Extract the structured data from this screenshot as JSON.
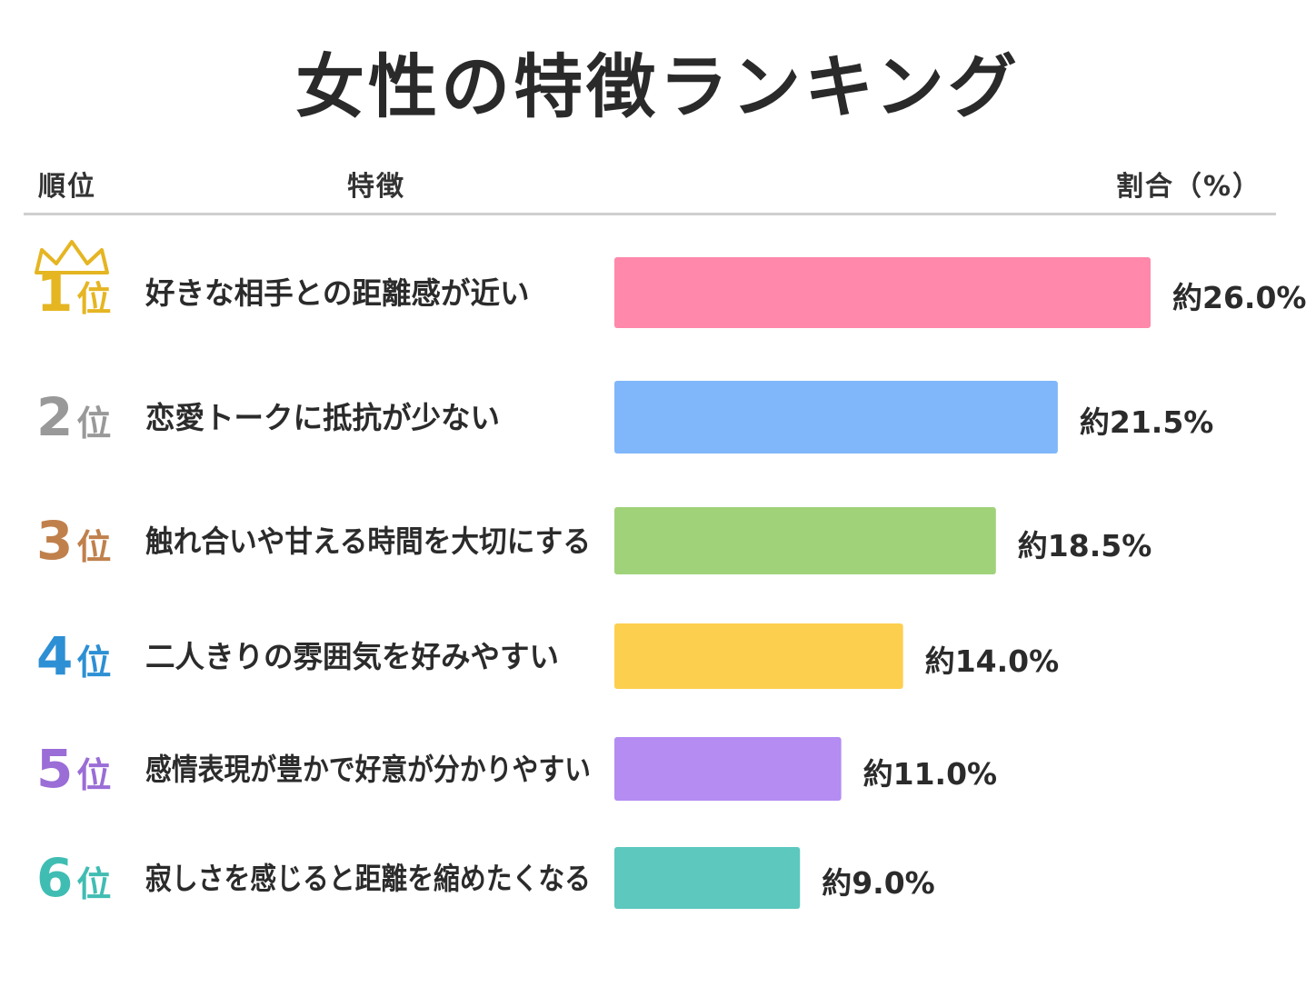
{
  "title": "女性の特徴ランキング",
  "headers": {
    "rank": "順位",
    "feature": "特徴",
    "ratio": "割合（%）"
  },
  "rank_suffix": "位",
  "chart_data": {
    "type": "bar",
    "orientation": "horizontal",
    "title": "女性の特徴ランキング",
    "unit": "%",
    "value_prefix": "約",
    "xlim": [
      0,
      26
    ],
    "categories": [
      "好きな相手との距離感が近い",
      "恋愛トークに抵抗が少ない",
      "触れ合いや甘える時間を大切にする",
      "二人きりの雰囲気を好みやすい",
      "感情表現が豊かで好意が分かりやすい",
      "寂しさを感じると距離を縮めたくなる"
    ],
    "ranks": [
      "1",
      "2",
      "3",
      "4",
      "5",
      "6"
    ],
    "values": [
      26.0,
      21.5,
      18.5,
      14.0,
      11.0,
      9.0
    ],
    "bar_colors": [
      "#ff88ab",
      "#80b6fa",
      "#a0d27a",
      "#fdcf4f",
      "#b48cf2",
      "#5cc8be"
    ],
    "rank_colors": [
      "#e5b522",
      "#999999",
      "#c0804c",
      "#2d8fd4",
      "#9a6dd7",
      "#40bdb3"
    ],
    "crown_icon": "crown-icon"
  }
}
